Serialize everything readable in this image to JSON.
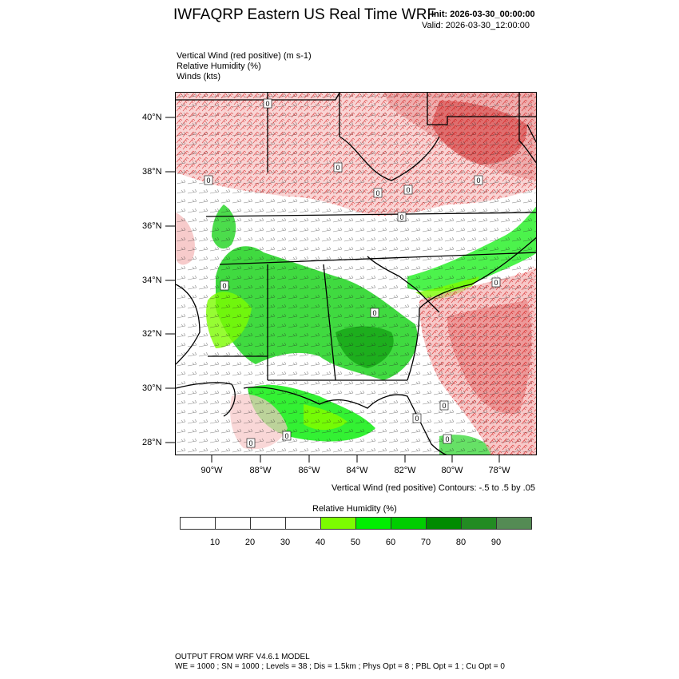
{
  "header": {
    "title": "IWFAQRP Eastern US Real Time WRF",
    "init": "Init: 2026-03-30_00:00:00",
    "valid": "Valid: 2026-03-30_12:00:00"
  },
  "fields": [
    "Vertical Wind (red positive)   (m s-1)",
    "Relative Humidity   (%)",
    "Winds   (kts)"
  ],
  "map": {
    "lat_labels": [
      "40°N",
      "38°N",
      "36°N",
      "34°N",
      "32°N",
      "30°N",
      "28°N"
    ],
    "lon_labels": [
      "90°W",
      "88°W",
      "86°W",
      "84°W",
      "82°W",
      "80°W",
      "78°W"
    ],
    "contour_zero_label": "0",
    "colors": {
      "updraft_red": "#cc0000",
      "downdraft_blue": "#2233cc",
      "barb": "#000000"
    }
  },
  "contour_note": "Vertical Wind (red positive) Contours: -.5 to .5 by .05",
  "colorbar": {
    "title": "Relative Humidity  (%)",
    "ticks": [
      "10",
      "20",
      "30",
      "40",
      "50",
      "60",
      "70",
      "80",
      "90"
    ],
    "colors": [
      "#ffffff",
      "#ffffff",
      "#ffffff",
      "#ffffff",
      "#7cfc00",
      "#00ee00",
      "#00cd00",
      "#008b00",
      "#228b22",
      "#548b54"
    ]
  },
  "footer": {
    "line1": "OUTPUT FROM WRF V4.6.1 MODEL",
    "line2": "WE = 1000 ; SN = 1000 ; Levels = 38 ; Dis = 1.5km ; Phys Opt = 8 ; PBL Opt = 1 ; Cu Opt = 0"
  }
}
